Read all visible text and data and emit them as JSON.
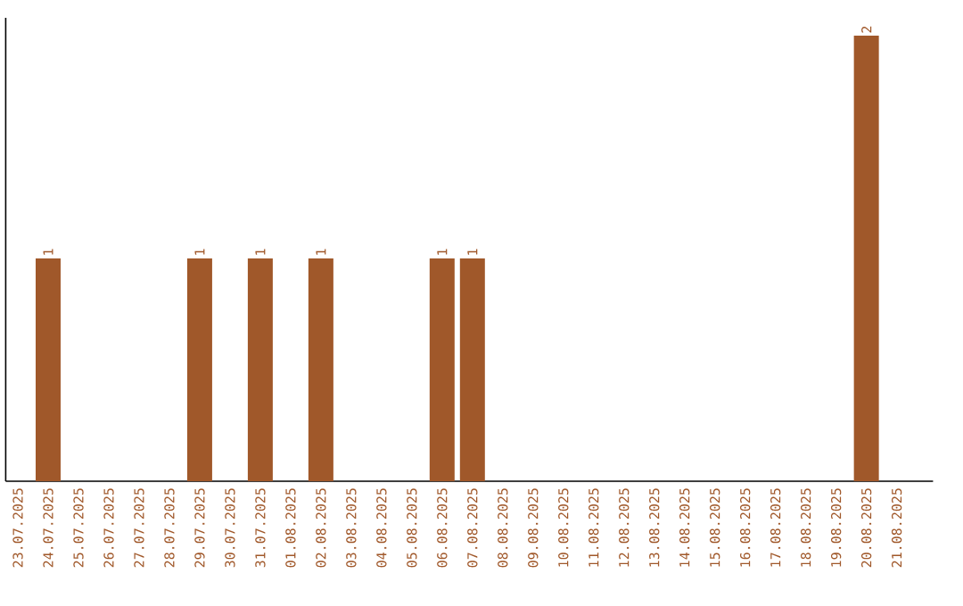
{
  "chart_data": {
    "type": "bar",
    "categories": [
      "23.07.2025",
      "24.07.2025",
      "25.07.2025",
      "26.07.2025",
      "27.07.2025",
      "28.07.2025",
      "29.07.2025",
      "30.07.2025",
      "31.07.2025",
      "01.08.2025",
      "02.08.2025",
      "03.08.2025",
      "04.08.2025",
      "05.08.2025",
      "06.08.2025",
      "07.08.2025",
      "08.08.2025",
      "09.08.2025",
      "10.08.2025",
      "11.08.2025",
      "12.08.2025",
      "13.08.2025",
      "14.08.2025",
      "15.08.2025",
      "16.08.2025",
      "17.08.2025",
      "18.08.2025",
      "19.08.2025",
      "20.08.2025",
      "21.08.2025"
    ],
    "values": [
      0,
      1,
      0,
      0,
      0,
      0,
      1,
      0,
      1,
      0,
      1,
      0,
      0,
      0,
      1,
      1,
      0,
      0,
      0,
      0,
      0,
      0,
      0,
      0,
      0,
      0,
      0,
      0,
      2,
      0
    ],
    "value_labels": [
      null,
      "1",
      null,
      null,
      null,
      null,
      "1",
      null,
      "1",
      null,
      "1",
      null,
      null,
      null,
      "1",
      "1",
      null,
      null,
      null,
      null,
      null,
      null,
      null,
      null,
      null,
      null,
      null,
      null,
      "2",
      null
    ],
    "color": "#a0582a",
    "tick_labels": "x"
  }
}
